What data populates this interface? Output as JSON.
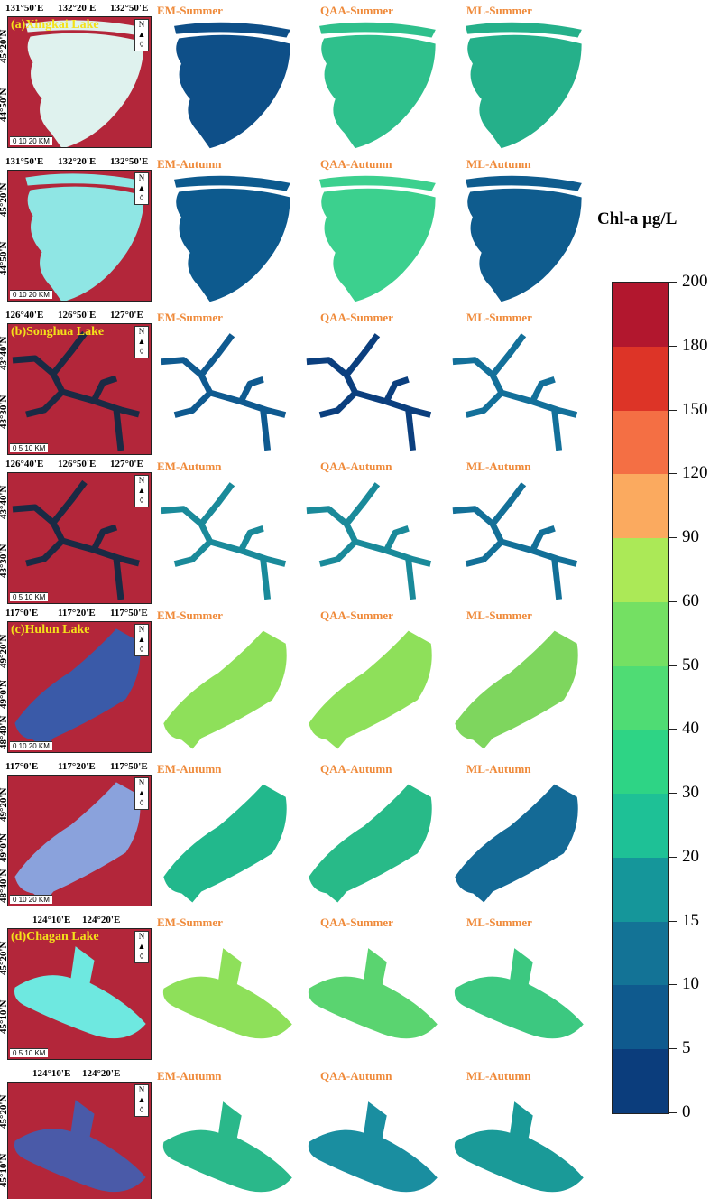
{
  "lakes": [
    {
      "name": "(a)Xingkai Lake",
      "shape": "xingkai",
      "lon": [
        "131°50'E",
        "132°20'E",
        "132°50'E"
      ],
      "lat": [
        "45°20'N",
        "44°50'N"
      ],
      "scale": "0   10   20 KM",
      "rows": [
        {
          "sat_color": "#dff2ee",
          "panels": [
            {
              "label": "EM-Summer",
              "color": "#0e4f88"
            },
            {
              "label": "QAA-Summer",
              "color": "#2fc08c"
            },
            {
              "label": "ML-Summer",
              "color": "#25b08a"
            }
          ]
        },
        {
          "sat_color": "#8fe6e4",
          "panels": [
            {
              "label": "EM-Autumn",
              "color": "#0d5a8e"
            },
            {
              "label": "QAA-Autumn",
              "color": "#3cd08e"
            },
            {
              "label": "ML-Autumn",
              "color": "#0f5c8e"
            }
          ]
        }
      ]
    },
    {
      "name": "(b)Songhua Lake",
      "shape": "songhua",
      "lon": [
        "126°40'E",
        "126°50'E",
        "127°0'E"
      ],
      "lat": [
        "43°40'N",
        "43°30'N"
      ],
      "scale": "0     5    10 KM",
      "rows": [
        {
          "sat_color": "#1a2a44",
          "panels": [
            {
              "label": "EM-Summer",
              "color": "#0f5a90"
            },
            {
              "label": "QAA-Summer",
              "color": "#0b3f7e"
            },
            {
              "label": "ML-Summer",
              "color": "#13709a"
            }
          ]
        },
        {
          "sat_color": "#1a2a44",
          "panels": [
            {
              "label": "EM-Autumn",
              "color": "#1a8a9a"
            },
            {
              "label": "QAA-Autumn",
              "color": "#1a8a9a"
            },
            {
              "label": "ML-Autumn",
              "color": "#137098"
            }
          ]
        }
      ]
    },
    {
      "name": "(c)Hulun Lake",
      "shape": "hulun",
      "lon": [
        "117°0'E",
        "117°20'E",
        "117°50'E"
      ],
      "lat": [
        "49°20'N",
        "49°0'N",
        "48°40'N"
      ],
      "scale": "0   10   20 KM",
      "rows": [
        {
          "sat_color": "#3a5aa8",
          "panels": [
            {
              "label": "EM-Summer",
              "color": "#8ee05a"
            },
            {
              "label": "QAA-Summer",
              "color": "#8ee05a"
            },
            {
              "label": "ML-Summer",
              "color": "#7ed65e"
            }
          ]
        },
        {
          "sat_color": "#8aa2dc",
          "panels": [
            {
              "label": "EM-Autumn",
              "color": "#22b88c"
            },
            {
              "label": "QAA-Autumn",
              "color": "#28ba88"
            },
            {
              "label": "ML-Autumn",
              "color": "#146a96"
            }
          ]
        }
      ]
    },
    {
      "name": "(d)Chagan Lake",
      "shape": "chagan",
      "lon": [
        "124°10'E",
        "124°20'E"
      ],
      "lat": [
        "45°20'N",
        "45°10'N"
      ],
      "scale": "0     5    10 KM",
      "rows": [
        {
          "sat_color": "#6ee8e0",
          "panels": [
            {
              "label": "EM-Summer",
              "color": "#8ee05a"
            },
            {
              "label": "QAA-Summer",
              "color": "#5ad470"
            },
            {
              "label": "ML-Summer",
              "color": "#3cc880"
            }
          ]
        },
        {
          "sat_color": "#4a5aa8",
          "panels": [
            {
              "label": "EM-Autumn",
              "color": "#2ab88a"
            },
            {
              "label": "QAA-Autumn",
              "color": "#1a8ea0"
            },
            {
              "label": "ML-Autumn",
              "color": "#1a9a98"
            }
          ]
        }
      ]
    }
  ],
  "colorbar": {
    "title": "Chl-a μg/L",
    "ticks": [
      "0",
      "5",
      "10",
      "15",
      "20",
      "30",
      "40",
      "50",
      "60",
      "90",
      "120",
      "150",
      "180",
      "200"
    ],
    "colors": [
      "#0b3d7c",
      "#0f5a8e",
      "#137396",
      "#15969a",
      "#1ec196",
      "#2ed485",
      "#4fdc74",
      "#74e063",
      "#abe957",
      "#fbaa5f",
      "#f46f44",
      "#dd3427",
      "#b2172e"
    ]
  }
}
